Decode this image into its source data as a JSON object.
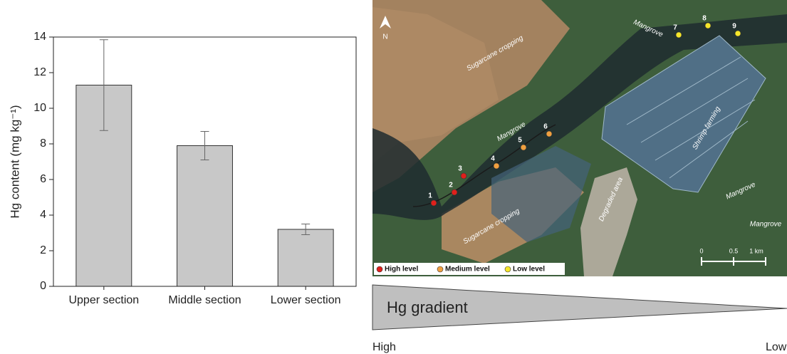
{
  "chart_data": {
    "type": "bar",
    "ylabel": "Hg content (mg kg⁻¹)",
    "categories": [
      "Upper section",
      "Middle section",
      "Lower section"
    ],
    "values": [
      11.3,
      7.9,
      3.2
    ],
    "errors": [
      2.55,
      0.8,
      0.3
    ],
    "color": "#c8c8c8",
    "ylim": [
      0,
      14
    ],
    "yticks": [
      0,
      2,
      4,
      6,
      8,
      10,
      12,
      14
    ]
  },
  "map": {
    "north": "N",
    "area_labels": [
      "Sugarcane cropping",
      "Sugarcane cropping",
      "Mangrove",
      "Mangrove",
      "Mangrove",
      "Mangrove",
      "Shrimp farming",
      "Degraded area"
    ],
    "sites": [
      "1",
      "2",
      "3",
      "4",
      "5",
      "6",
      "7",
      "8",
      "9"
    ],
    "site_levels": [
      0,
      0,
      0,
      1,
      1,
      1,
      2,
      2,
      2
    ],
    "legend": [
      {
        "name": "High level",
        "color": "#e0201b"
      },
      {
        "name": "Medium level",
        "color": "#f0a040"
      },
      {
        "name": "Low level",
        "color": "#f5e62a"
      }
    ],
    "scale": [
      "0",
      "0.5",
      "1 km"
    ]
  },
  "gradient": {
    "label": "Hg gradient",
    "high": "High",
    "low": "Low"
  }
}
